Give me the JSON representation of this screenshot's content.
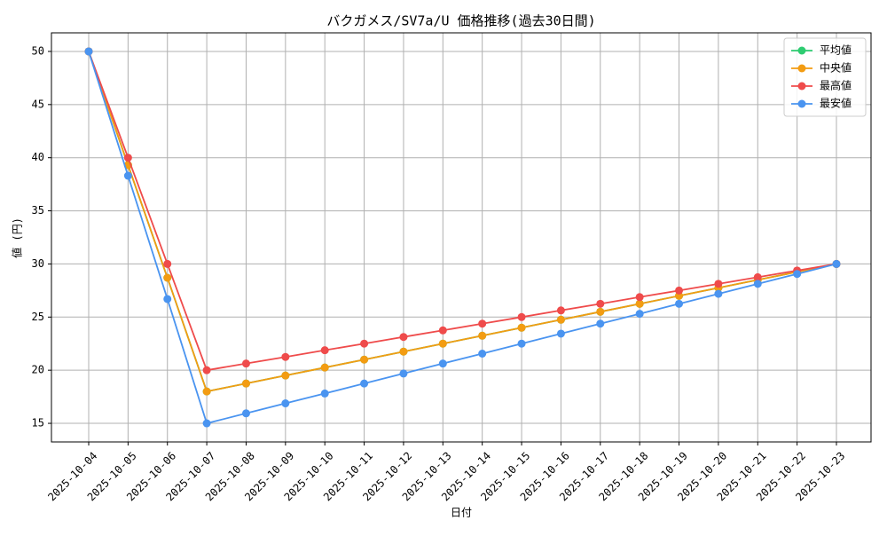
{
  "chart_data": {
    "type": "line",
    "title": "バクガメス/SV7a/U 価格推移(過去30日間)",
    "x_label": "日付",
    "y_label": "値 (円)",
    "categories": [
      "2025-10-04",
      "2025-10-05",
      "2025-10-06",
      "2025-10-07",
      "2025-10-08",
      "2025-10-09",
      "2025-10-10",
      "2025-10-11",
      "2025-10-12",
      "2025-10-13",
      "2025-10-14",
      "2025-10-15",
      "2025-10-16",
      "2025-10-17",
      "2025-10-18",
      "2025-10-19",
      "2025-10-20",
      "2025-10-21",
      "2025-10-22",
      "2025-10-23"
    ],
    "series": [
      {
        "name": "平均値",
        "color": "#2ecc71",
        "values": [
          50,
          39.3,
          28.7,
          18,
          18.75,
          19.5,
          20.25,
          21,
          21.75,
          22.5,
          23.25,
          24,
          24.75,
          25.5,
          26.25,
          27,
          27.75,
          28.5,
          29.25,
          30
        ]
      },
      {
        "name": "中央値",
        "color": "#f39c12",
        "values": [
          50,
          39.3,
          28.7,
          18,
          18.75,
          19.5,
          20.25,
          21,
          21.75,
          22.5,
          23.25,
          24,
          24.75,
          25.5,
          26.25,
          27,
          27.75,
          28.5,
          29.25,
          30
        ]
      },
      {
        "name": "最高値",
        "color": "#ef4b4b",
        "values": [
          50,
          40,
          30,
          20,
          20.63,
          21.25,
          21.88,
          22.5,
          23.13,
          23.75,
          24.38,
          25,
          25.63,
          26.25,
          26.88,
          27.5,
          28.13,
          28.75,
          29.38,
          30
        ]
      },
      {
        "name": "最安値",
        "color": "#4a94f0",
        "values": [
          50,
          38.3,
          26.7,
          15,
          15.94,
          16.88,
          17.81,
          18.75,
          19.69,
          20.63,
          21.56,
          22.5,
          23.44,
          24.38,
          25.31,
          26.25,
          27.19,
          28.13,
          29.06,
          30
        ]
      }
    ],
    "ylim": [
      13.25,
      51.75
    ],
    "yticks": [
      15,
      20,
      25,
      30,
      35,
      40,
      45,
      50
    ],
    "grid": true,
    "legend": "upper right"
  }
}
